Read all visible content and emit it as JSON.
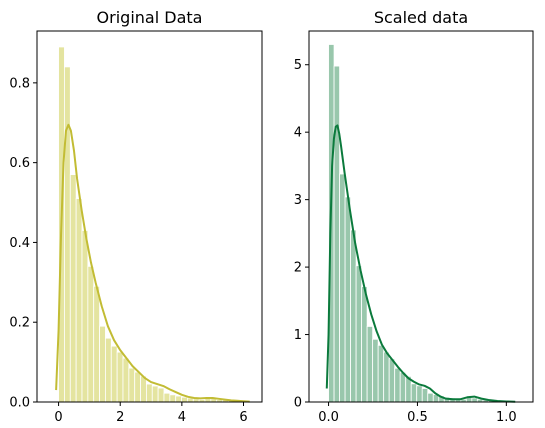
{
  "chart_data": [
    {
      "type": "bar",
      "title": "Original Data",
      "xlabel": "",
      "ylabel": "",
      "xlim": [
        -0.7,
        6.6
      ],
      "ylim": [
        0,
        0.93
      ],
      "xticks": [
        0,
        2,
        4,
        6
      ],
      "yticks": [
        0.0,
        0.2,
        0.4,
        0.6,
        0.8
      ],
      "grid": false,
      "colors": {
        "bars": "#e4e4a0",
        "kde": "#c2bc34"
      },
      "bin_width": 0.19,
      "bins_x": [
        0.0,
        0.19,
        0.38,
        0.57,
        0.76,
        0.95,
        1.14,
        1.33,
        1.52,
        1.71,
        1.9,
        2.09,
        2.28,
        2.47,
        2.66,
        2.85,
        3.04,
        3.23,
        3.42,
        3.61,
        3.8,
        3.99,
        4.18,
        4.37,
        4.56,
        4.75,
        4.94,
        5.13,
        5.32,
        5.51,
        5.7,
        5.89,
        6.08
      ],
      "bins_y": [
        0.89,
        0.84,
        0.57,
        0.51,
        0.43,
        0.34,
        0.29,
        0.19,
        0.16,
        0.14,
        0.125,
        0.11,
        0.085,
        0.075,
        0.065,
        0.045,
        0.04,
        0.035,
        0.022,
        0.018,
        0.015,
        0.012,
        0.01,
        0.008,
        0.006,
        0.012,
        0.01,
        0.006,
        0.005,
        0.004,
        0.003,
        0.002,
        0.002
      ],
      "kde": {
        "x": [
          -0.08,
          0.0,
          0.08,
          0.16,
          0.24,
          0.32,
          0.4,
          0.5,
          0.6,
          0.75,
          0.9,
          1.05,
          1.2,
          1.4,
          1.6,
          1.8,
          2.0,
          2.2,
          2.4,
          2.6,
          2.8,
          3.0,
          3.2,
          3.4,
          3.6,
          3.8,
          4.0,
          4.2,
          4.4,
          4.6,
          4.8,
          5.0,
          5.2,
          5.4,
          5.6,
          5.8,
          6.0,
          6.2
        ],
        "y": [
          0.03,
          0.18,
          0.42,
          0.6,
          0.68,
          0.695,
          0.68,
          0.63,
          0.56,
          0.48,
          0.41,
          0.35,
          0.3,
          0.24,
          0.19,
          0.155,
          0.13,
          0.11,
          0.09,
          0.075,
          0.06,
          0.05,
          0.045,
          0.04,
          0.032,
          0.025,
          0.018,
          0.013,
          0.01,
          0.009,
          0.01,
          0.01,
          0.008,
          0.006,
          0.004,
          0.003,
          0.002,
          0.001
        ]
      }
    },
    {
      "type": "bar",
      "title": "Scaled data",
      "xlabel": "",
      "ylabel": "",
      "xlim": [
        -0.11,
        1.15
      ],
      "ylim": [
        0,
        5.5
      ],
      "xticks": [
        0.0,
        0.5,
        1.0
      ],
      "yticks": [
        0,
        1,
        2,
        3,
        4,
        5
      ],
      "grid": false,
      "colors": {
        "bars": "#99c7ac",
        "kde": "#0b7a3c"
      },
      "bin_width": 0.031,
      "bins_x": [
        0.0,
        0.031,
        0.062,
        0.093,
        0.124,
        0.155,
        0.186,
        0.217,
        0.248,
        0.279,
        0.31,
        0.341,
        0.372,
        0.403,
        0.434,
        0.465,
        0.496,
        0.527,
        0.558,
        0.589,
        0.62,
        0.651,
        0.682,
        0.713,
        0.744,
        0.775,
        0.806,
        0.837,
        0.868,
        0.899,
        0.93,
        0.961,
        0.992
      ],
      "bins_y": [
        5.3,
        4.98,
        3.38,
        3.04,
        2.55,
        2.02,
        1.71,
        1.12,
        0.93,
        0.84,
        0.74,
        0.64,
        0.5,
        0.44,
        0.38,
        0.27,
        0.24,
        0.2,
        0.13,
        0.11,
        0.09,
        0.07,
        0.06,
        0.05,
        0.04,
        0.07,
        0.06,
        0.04,
        0.03,
        0.025,
        0.02,
        0.012,
        0.012
      ],
      "kde": {
        "x": [
          -0.01,
          0.0,
          0.01,
          0.02,
          0.03,
          0.04,
          0.05,
          0.06,
          0.07,
          0.09,
          0.12,
          0.15,
          0.18,
          0.21,
          0.24,
          0.27,
          0.3,
          0.33,
          0.36,
          0.39,
          0.42,
          0.45,
          0.48,
          0.51,
          0.54,
          0.57,
          0.6,
          0.63,
          0.66,
          0.7,
          0.74,
          0.78,
          0.82,
          0.86,
          0.9,
          0.95,
          1.0,
          1.05
        ],
        "y": [
          0.2,
          1.0,
          2.5,
          3.5,
          3.9,
          4.08,
          4.1,
          3.98,
          3.8,
          3.4,
          2.85,
          2.35,
          1.95,
          1.6,
          1.3,
          1.05,
          0.85,
          0.72,
          0.62,
          0.52,
          0.43,
          0.35,
          0.3,
          0.26,
          0.24,
          0.2,
          0.13,
          0.08,
          0.05,
          0.04,
          0.04,
          0.07,
          0.08,
          0.05,
          0.03,
          0.015,
          0.008,
          0.003
        ]
      }
    }
  ]
}
